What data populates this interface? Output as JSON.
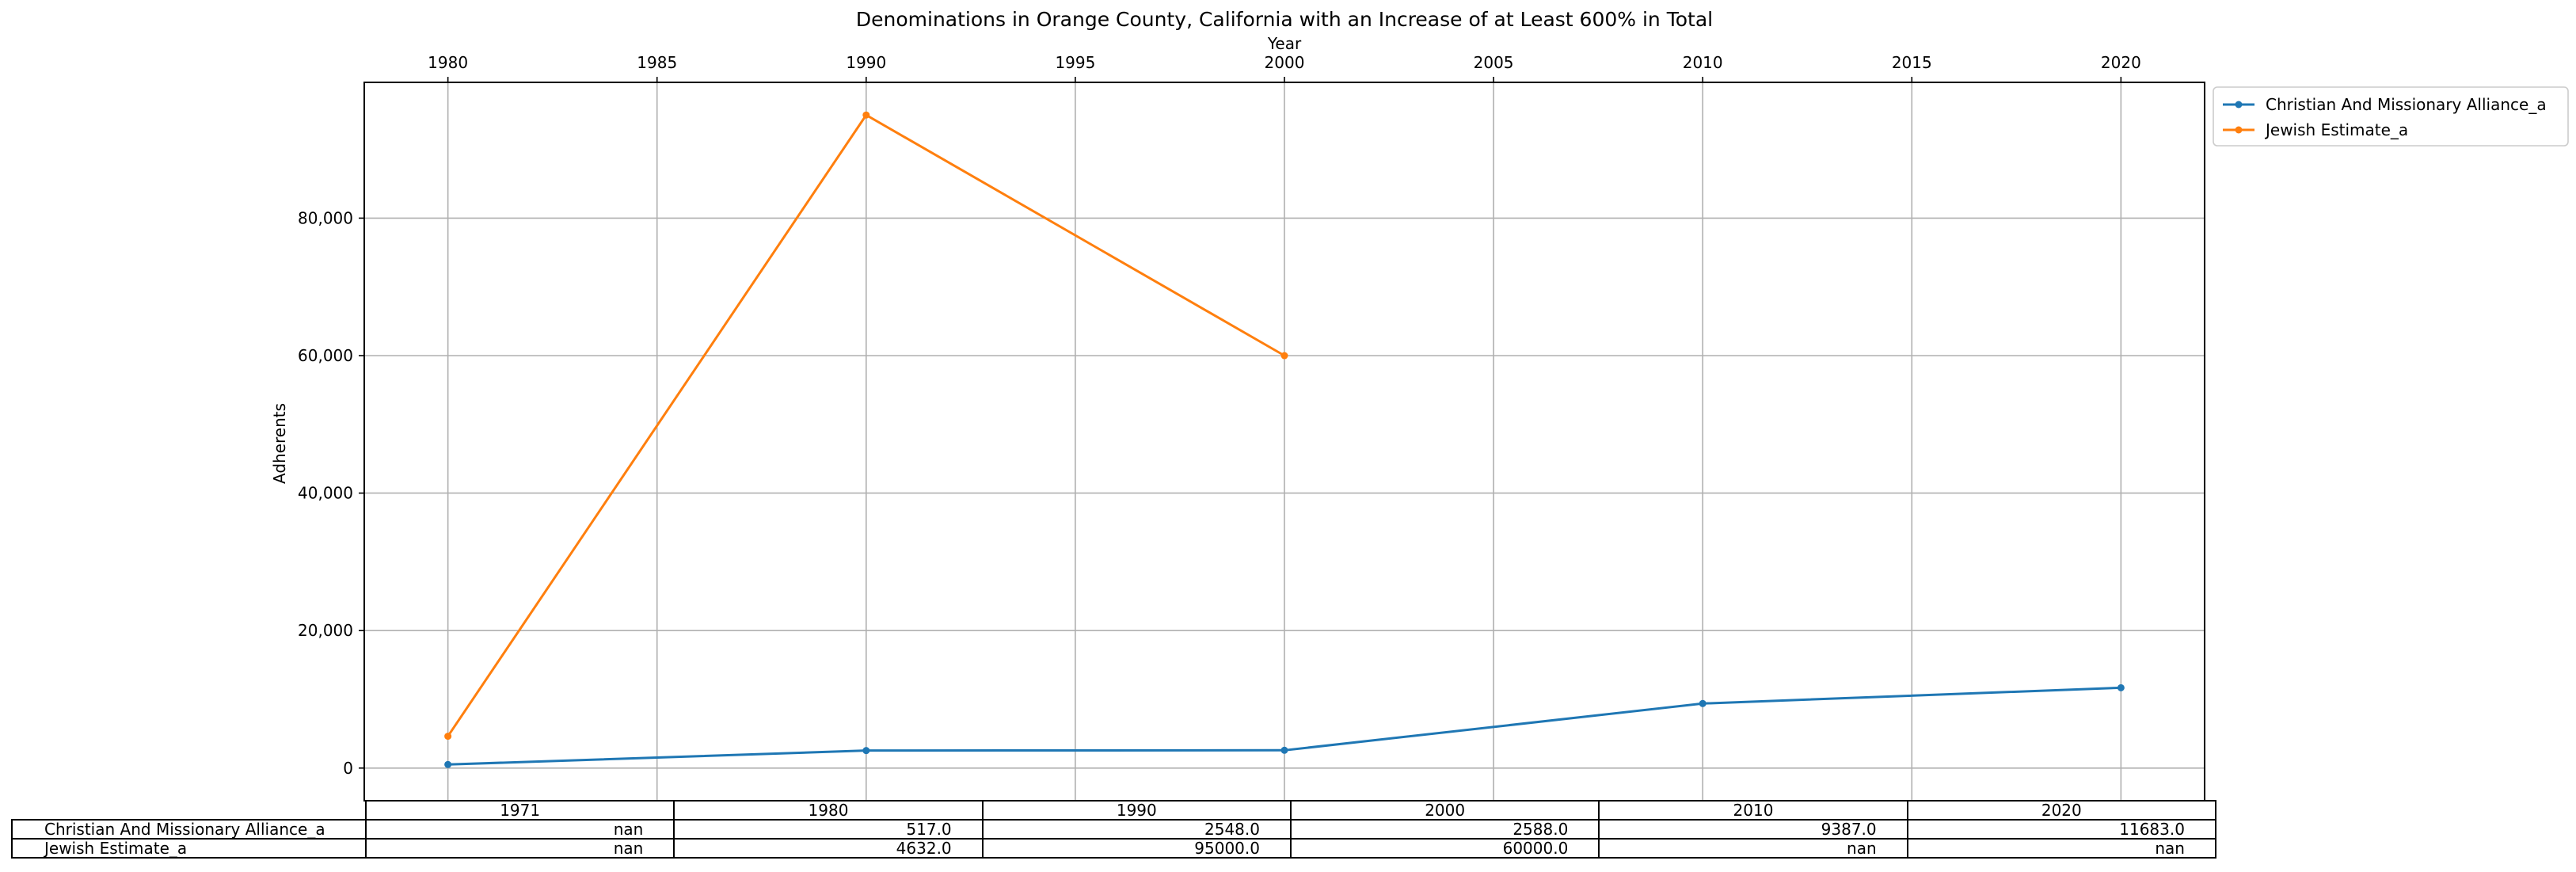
{
  "chart_data": {
    "type": "line",
    "title": "Denominations in Orange County, California with an Increase of at Least 600% in Total",
    "xlabel": "Year",
    "ylabel": "Adherents",
    "xlim": [
      1978,
      2022
    ],
    "ylim": [
      -4750,
      99750
    ],
    "x_ticks": [
      1980,
      1985,
      1990,
      1995,
      2000,
      2005,
      2010,
      2015,
      2020
    ],
    "y_ticks": [
      0,
      20000,
      40000,
      60000,
      80000
    ],
    "y_tick_labels": [
      "0",
      "20,000",
      "40,000",
      "60,000",
      "80,000"
    ],
    "x_axis_position": "top",
    "grid": true,
    "legend_position": "outside-upper-right",
    "series": [
      {
        "name": "Christian And Missionary Alliance_a",
        "color": "#1f77b4",
        "x": [
          1980,
          1990,
          2000,
          2010,
          2020
        ],
        "values": [
          517,
          2548,
          2588,
          9387,
          11683
        ]
      },
      {
        "name": "Jewish Estimate_a",
        "color": "#ff7f0e",
        "x": [
          1980,
          1990,
          2000
        ],
        "values": [
          4632,
          95000,
          60000
        ]
      }
    ],
    "table": {
      "columns": [
        "1971",
        "1980",
        "1990",
        "2000",
        "2010",
        "2020"
      ],
      "rows": [
        {
          "label": "Christian And Missionary Alliance_a",
          "cells": [
            "nan",
            "517.0",
            "2548.0",
            "2588.0",
            "9387.0",
            "11683.0"
          ]
        },
        {
          "label": "Jewish Estimate_a",
          "cells": [
            "nan",
            "4632.0",
            "95000.0",
            "60000.0",
            "nan",
            "nan"
          ]
        }
      ]
    }
  }
}
